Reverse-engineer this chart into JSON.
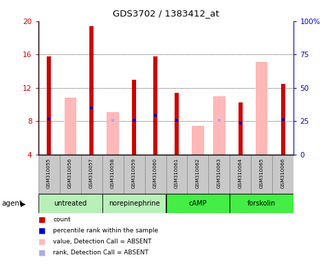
{
  "title": "GDS3702 / 1383412_at",
  "samples": [
    "GSM310055",
    "GSM310056",
    "GSM310057",
    "GSM310058",
    "GSM310059",
    "GSM310060",
    "GSM310061",
    "GSM310062",
    "GSM310063",
    "GSM310064",
    "GSM310065",
    "GSM310066"
  ],
  "groups": [
    {
      "name": "untreated",
      "color": "#b8f0b8",
      "indices": [
        0,
        1,
        2
      ]
    },
    {
      "name": "norepinephrine",
      "color": "#b8f0b8",
      "indices": [
        3,
        4,
        5
      ]
    },
    {
      "name": "cAMP",
      "color": "#44ee44",
      "indices": [
        6,
        7,
        8
      ]
    },
    {
      "name": "forskolin",
      "color": "#44ee44",
      "indices": [
        9,
        10,
        11
      ]
    }
  ],
  "red_bars": [
    15.8,
    null,
    19.4,
    null,
    13.0,
    15.8,
    11.4,
    null,
    null,
    10.2,
    null,
    12.5
  ],
  "pink_bars": [
    null,
    10.8,
    null,
    9.1,
    null,
    null,
    null,
    7.4,
    11.0,
    null,
    15.1,
    null
  ],
  "blue_dot_values": [
    8.3,
    null,
    9.6,
    null,
    8.1,
    8.7,
    8.1,
    null,
    null,
    7.8,
    null,
    8.2
  ],
  "light_blue_values": [
    null,
    null,
    9.6,
    8.1,
    null,
    null,
    null,
    null,
    8.1,
    7.8,
    null,
    null
  ],
  "ylim_left": [
    4,
    20
  ],
  "ylim_right": [
    0,
    100
  ],
  "yticks_left": [
    4,
    8,
    12,
    16,
    20
  ],
  "yticks_right": [
    0,
    25,
    50,
    75,
    100
  ],
  "ytick_labels_right": [
    "0",
    "25",
    "50",
    "75",
    "100%"
  ],
  "bar_bottom": 4,
  "red_color": "#cc0000",
  "pink_color": "#ffb8b8",
  "blue_color": "#0000cc",
  "light_blue_color": "#aaaaee",
  "grid_color": "#000000",
  "bg_color": "#ffffff",
  "plot_bg": "#ffffff",
  "tick_color_left": "#cc0000",
  "tick_color_right": "#0000cc",
  "sample_box_color": "#c8c8c8",
  "grid_lines_at": [
    8,
    12,
    16
  ]
}
